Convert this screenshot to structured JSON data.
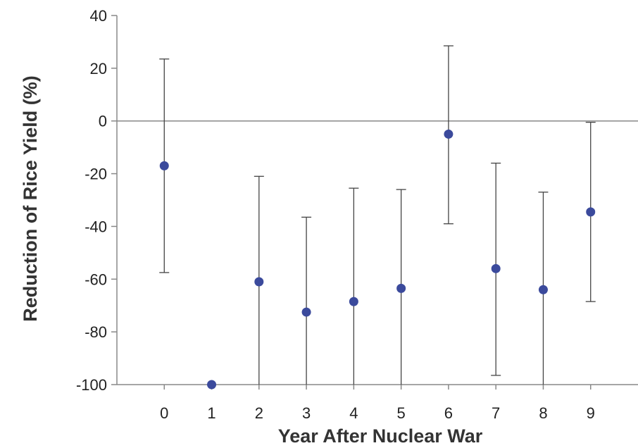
{
  "chart_data": {
    "type": "scatter",
    "xlabel": "Year After Nuclear War",
    "ylabel": "Reduction of Rice Yield (%)",
    "xlim": [
      -1,
      10
    ],
    "ylim": [
      -100,
      40
    ],
    "y_ticks": [
      40,
      20,
      0,
      -20,
      -40,
      -60,
      -80,
      -100
    ],
    "x_ticks": [
      0,
      1,
      2,
      3,
      4,
      5,
      6,
      7,
      8,
      9
    ],
    "grid": false,
    "reference_line_y": 0,
    "marker_color": "#3b4a9c",
    "errorbar_color": "#444444",
    "axis_color": "#888888",
    "series": [
      {
        "x": [
          0,
          1,
          2,
          3,
          4,
          5,
          6,
          7,
          8,
          9
        ],
        "y": [
          -17,
          -100,
          -61,
          -72.5,
          -68.5,
          -63.5,
          -5,
          -56,
          -64,
          -34.5
        ],
        "err_low": [
          -57.5,
          -100,
          -100,
          -100,
          -100,
          -100,
          -39,
          -96.5,
          -100,
          -68.5
        ],
        "err_high": [
          23.5,
          -100,
          -21,
          -36.5,
          -25.5,
          -26,
          28.5,
          -16,
          -27,
          -0.5
        ]
      }
    ]
  }
}
